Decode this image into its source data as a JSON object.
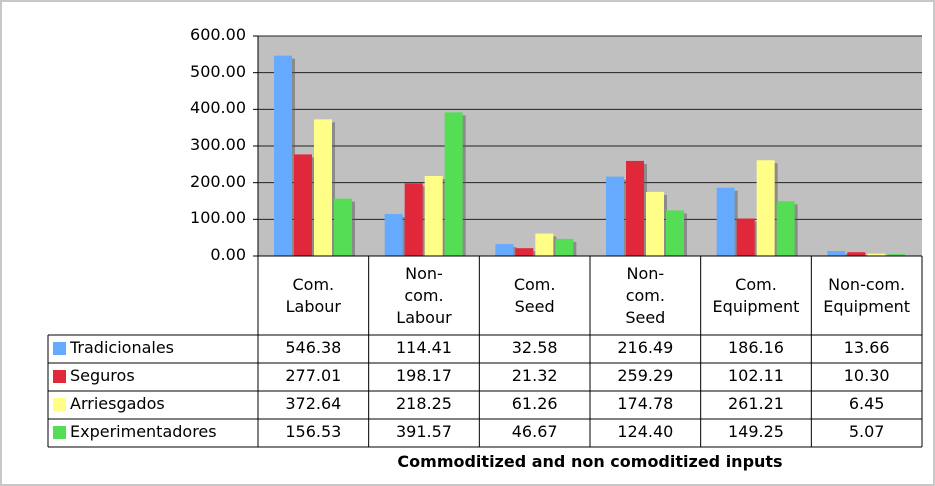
{
  "chart_data": {
    "type": "bar",
    "x_label": "Commoditized and non comoditized inputs",
    "categories": [
      "Com. Labour",
      "Non-com. Labour",
      "Com. Seed",
      "Non-com. Seed",
      "Com. Equipment",
      "Non-com. Equipment"
    ],
    "series": [
      {
        "name": "Tradicionales",
        "color": "#66aaff",
        "values": [
          546.38,
          114.41,
          32.58,
          216.49,
          186.16,
          13.66
        ],
        "value_labels": [
          "546.38",
          "114.41",
          "32.58",
          "216.49",
          "186.16",
          "13.66"
        ]
      },
      {
        "name": "Seguros",
        "color": "#e0283a",
        "values": [
          277.01,
          198.17,
          21.32,
          259.29,
          102.11,
          10.3
        ],
        "value_labels": [
          "277.01",
          "198.17",
          "21.32",
          "259.29",
          "102.11",
          "10.30"
        ]
      },
      {
        "name": "Arriesgados",
        "color": "#ffff88",
        "values": [
          372.64,
          218.25,
          61.26,
          174.78,
          261.21,
          6.45
        ],
        "value_labels": [
          "372.64",
          "218.25",
          "61.26",
          "174.78",
          "261.21",
          "6.45"
        ]
      },
      {
        "name": "Experimentadores",
        "color": "#55dd55",
        "values": [
          156.53,
          391.57,
          46.67,
          124.4,
          149.25,
          5.07
        ],
        "value_labels": [
          "156.53",
          "391.57",
          "46.67",
          "124.40",
          "149.25",
          "5.07"
        ]
      }
    ],
    "ylim": [
      0,
      600
    ],
    "yticks": [
      {
        "value": 0,
        "label": "0.00"
      },
      {
        "value": 100,
        "label": "100.00"
      },
      {
        "value": 200,
        "label": "200.00"
      },
      {
        "value": 300,
        "label": "300.00"
      },
      {
        "value": 400,
        "label": "400.00"
      },
      {
        "value": 500,
        "label": "500.00"
      },
      {
        "value": 600,
        "label": "600.00"
      }
    ],
    "grid": true
  }
}
